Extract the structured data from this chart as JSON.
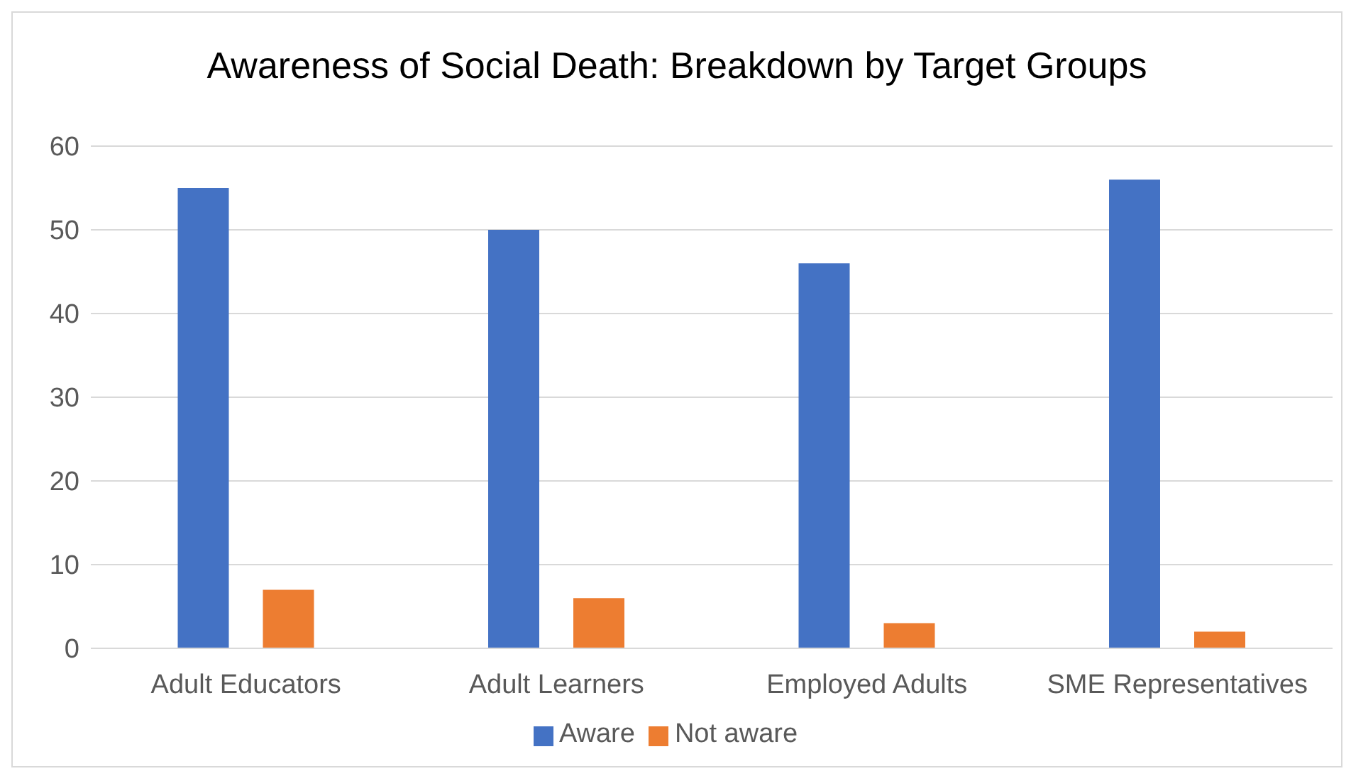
{
  "chart_data": {
    "type": "bar",
    "title": "Awareness of Social Death: Breakdown by Target Groups",
    "categories": [
      "Adult Educators",
      "Adult Learners",
      "Employed Adults",
      "SME Representatives"
    ],
    "series": [
      {
        "name": "Aware",
        "color": "#4472c4",
        "values": [
          55,
          50,
          46,
          56
        ]
      },
      {
        "name": "Not aware",
        "color": "#ed7d31",
        "values": [
          7,
          6,
          3,
          2
        ]
      }
    ],
    "ylim": [
      0,
      60
    ],
    "yticks": [
      0,
      10,
      20,
      30,
      40,
      50,
      60
    ],
    "grid": "y",
    "legend": "bottom"
  }
}
